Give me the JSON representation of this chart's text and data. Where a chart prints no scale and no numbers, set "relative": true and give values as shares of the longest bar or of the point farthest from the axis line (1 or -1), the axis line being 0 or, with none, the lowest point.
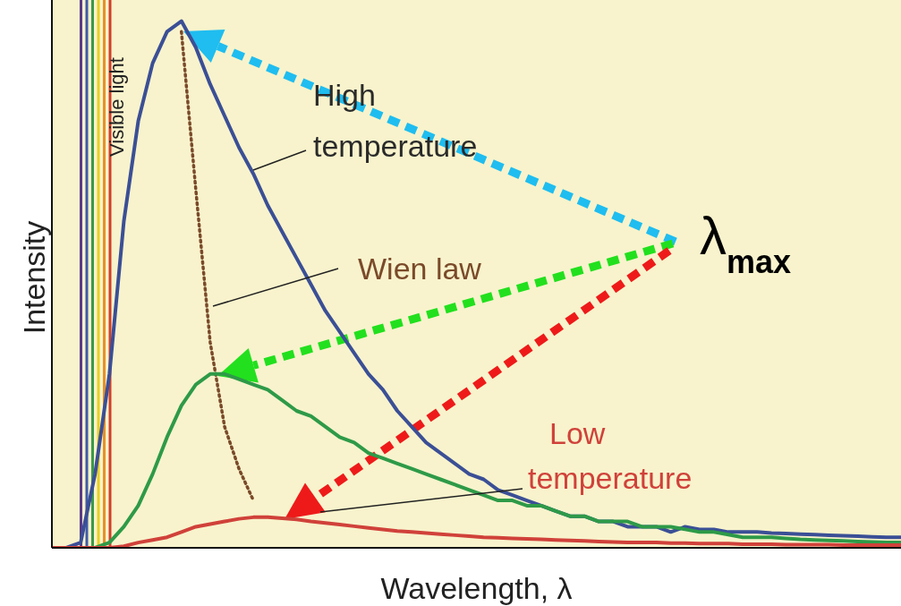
{
  "chart_data": {
    "type": "line",
    "relative": true,
    "xlabel": "Wavelength, λ",
    "ylabel": "Intensity",
    "annotations": [
      "Visible light",
      "λ$_{max}$"
    ],
    "legend": false,
    "grid": false,
    "categories": [
      null,
      null,
      null,
      null,
      null,
      null,
      null,
      null,
      null,
      null,
      null,
      null,
      null,
      null,
      null,
      null,
      null,
      null,
      null,
      null,
      null,
      null,
      null,
      null,
      null,
      null,
      null,
      null,
      null,
      null,
      null,
      null,
      null,
      null,
      null,
      null,
      null,
      null,
      null,
      null,
      null,
      null,
      null,
      null,
      null,
      null,
      null,
      null,
      null,
      null,
      null,
      null,
      null,
      null,
      null,
      null,
      null,
      null,
      null,
      null
    ],
    "series": [
      {
        "name": "High temperature",
        "color": "#3b4f96",
        "values": [
          0,
          0,
          0.01,
          0.14,
          0.33,
          0.62,
          0.81,
          0.92,
          0.98,
          1.0,
          0.95,
          0.88,
          0.82,
          0.76,
          0.71,
          0.65,
          0.6,
          0.55,
          0.5,
          0.45,
          0.41,
          0.37,
          0.33,
          0.3,
          0.26,
          0.23,
          0.2,
          0.18,
          0.16,
          0.14,
          0.13,
          0.11,
          0.1,
          0.09,
          0.08,
          0.07,
          0.06,
          0.06,
          0.05,
          0.05,
          0.04,
          0.04,
          0.04,
          0.03,
          0.04,
          0.035,
          0.035,
          0.03,
          0.03,
          0.03,
          0.028,
          0.027,
          0.026,
          0.025,
          0.024,
          0.023,
          0.022,
          0.021,
          0.02,
          0.02
        ]
      },
      {
        "name": "Wien law",
        "color": "#7a4a2a",
        "line_style": "dotted",
        "values": [
          null,
          null,
          null,
          null,
          null,
          null,
          null,
          null,
          null,
          0.98,
          0.68,
          0.39,
          0.23,
          0.15,
          0.09,
          null,
          null,
          null,
          null,
          null,
          null,
          null,
          null,
          null,
          null,
          null,
          null,
          null,
          null,
          null,
          null,
          null,
          null,
          null,
          null,
          null,
          null,
          null,
          null,
          null,
          null,
          null,
          null,
          null,
          null,
          null,
          null,
          null,
          null,
          null,
          null,
          null,
          null,
          null,
          null,
          null,
          null,
          null,
          null,
          null
        ]
      },
      {
        "color": "#2e9a48",
        "values": [
          0,
          0,
          0,
          0,
          0.01,
          0.04,
          0.08,
          0.14,
          0.21,
          0.27,
          0.31,
          0.33,
          0.33,
          0.32,
          0.31,
          0.3,
          0.28,
          0.26,
          0.25,
          0.23,
          0.21,
          0.2,
          0.18,
          0.17,
          0.16,
          0.15,
          0.14,
          0.13,
          0.12,
          0.11,
          0.1,
          0.09,
          0.09,
          0.08,
          0.08,
          0.07,
          0.06,
          0.06,
          0.05,
          0.05,
          0.05,
          0.04,
          0.04,
          0.04,
          0.035,
          0.03,
          0.03,
          0.025,
          0.02,
          0.02,
          0.02,
          0.018,
          0.016,
          0.015,
          0.014,
          0.013,
          0.012,
          0.011,
          0.01,
          0.01
        ]
      },
      {
        "name": "Low temperature",
        "color": "#d0413a",
        "values": [
          0,
          0,
          0,
          0,
          0,
          0.003,
          0.01,
          0.015,
          0.02,
          0.03,
          0.04,
          0.045,
          0.05,
          0.055,
          0.058,
          0.058,
          0.056,
          0.054,
          0.05,
          0.047,
          0.044,
          0.041,
          0.038,
          0.035,
          0.032,
          0.03,
          0.028,
          0.026,
          0.024,
          0.022,
          0.02,
          0.019,
          0.018,
          0.017,
          0.016,
          0.015,
          0.014,
          0.013,
          0.012,
          0.011,
          0.01,
          0.01,
          0.01,
          0.009,
          0.009,
          0.008,
          0.008,
          0.008,
          0.007,
          0.007,
          0.007,
          0.006,
          0.006,
          0.006,
          0.006,
          0.005,
          0.005,
          0.005,
          0.005,
          0.005
        ]
      }
    ]
  }
}
